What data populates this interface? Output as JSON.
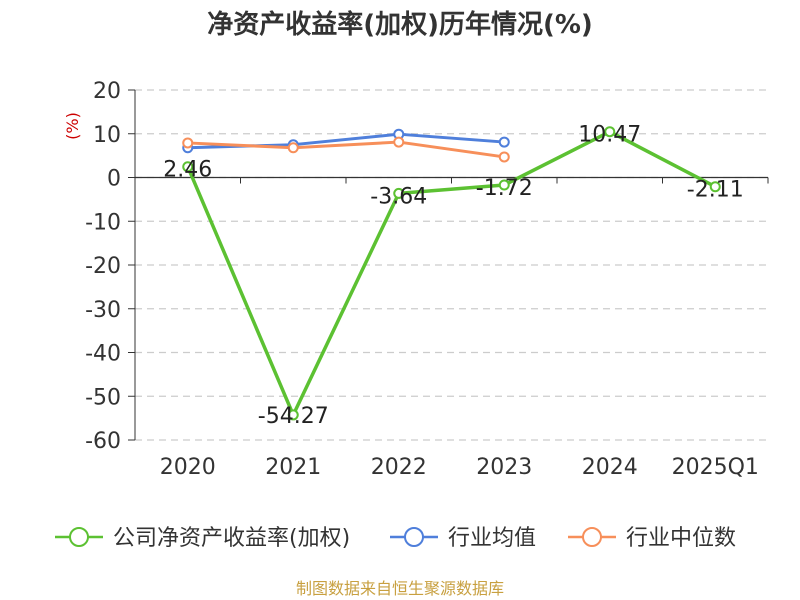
{
  "chart_data": {
    "type": "line",
    "title": "净资产收益率(加权)历年情况(%)",
    "ylabel": "(%)",
    "xlabel": "",
    "categories": [
      "2020",
      "2021",
      "2022",
      "2023",
      "2024",
      "2025Q1"
    ],
    "ylim": [
      -60,
      20
    ],
    "yticks": [
      20,
      10,
      0,
      -10,
      -20,
      -30,
      -40,
      -50,
      -60
    ],
    "grid": true,
    "legend_position": "bottom",
    "series": [
      {
        "name": "公司净资产收益率(加权)",
        "color": "#5cc132",
        "values": [
          2.46,
          -54.27,
          -3.64,
          -1.72,
          10.47,
          -2.11
        ],
        "labels": [
          "2.46",
          "-54.27",
          "-3.64",
          "-1.72",
          "10.47",
          "-2.11"
        ]
      },
      {
        "name": "行业均值",
        "color": "#4f7fdb",
        "values": [
          6.8,
          7.5,
          9.9,
          8.1,
          null,
          null
        ]
      },
      {
        "name": "行业中位数",
        "color": "#f78f5a",
        "values": [
          7.9,
          6.8,
          8.1,
          4.7,
          null,
          null
        ]
      }
    ]
  },
  "footer": {
    "source": "制图数据来自恒生聚源数据库"
  }
}
